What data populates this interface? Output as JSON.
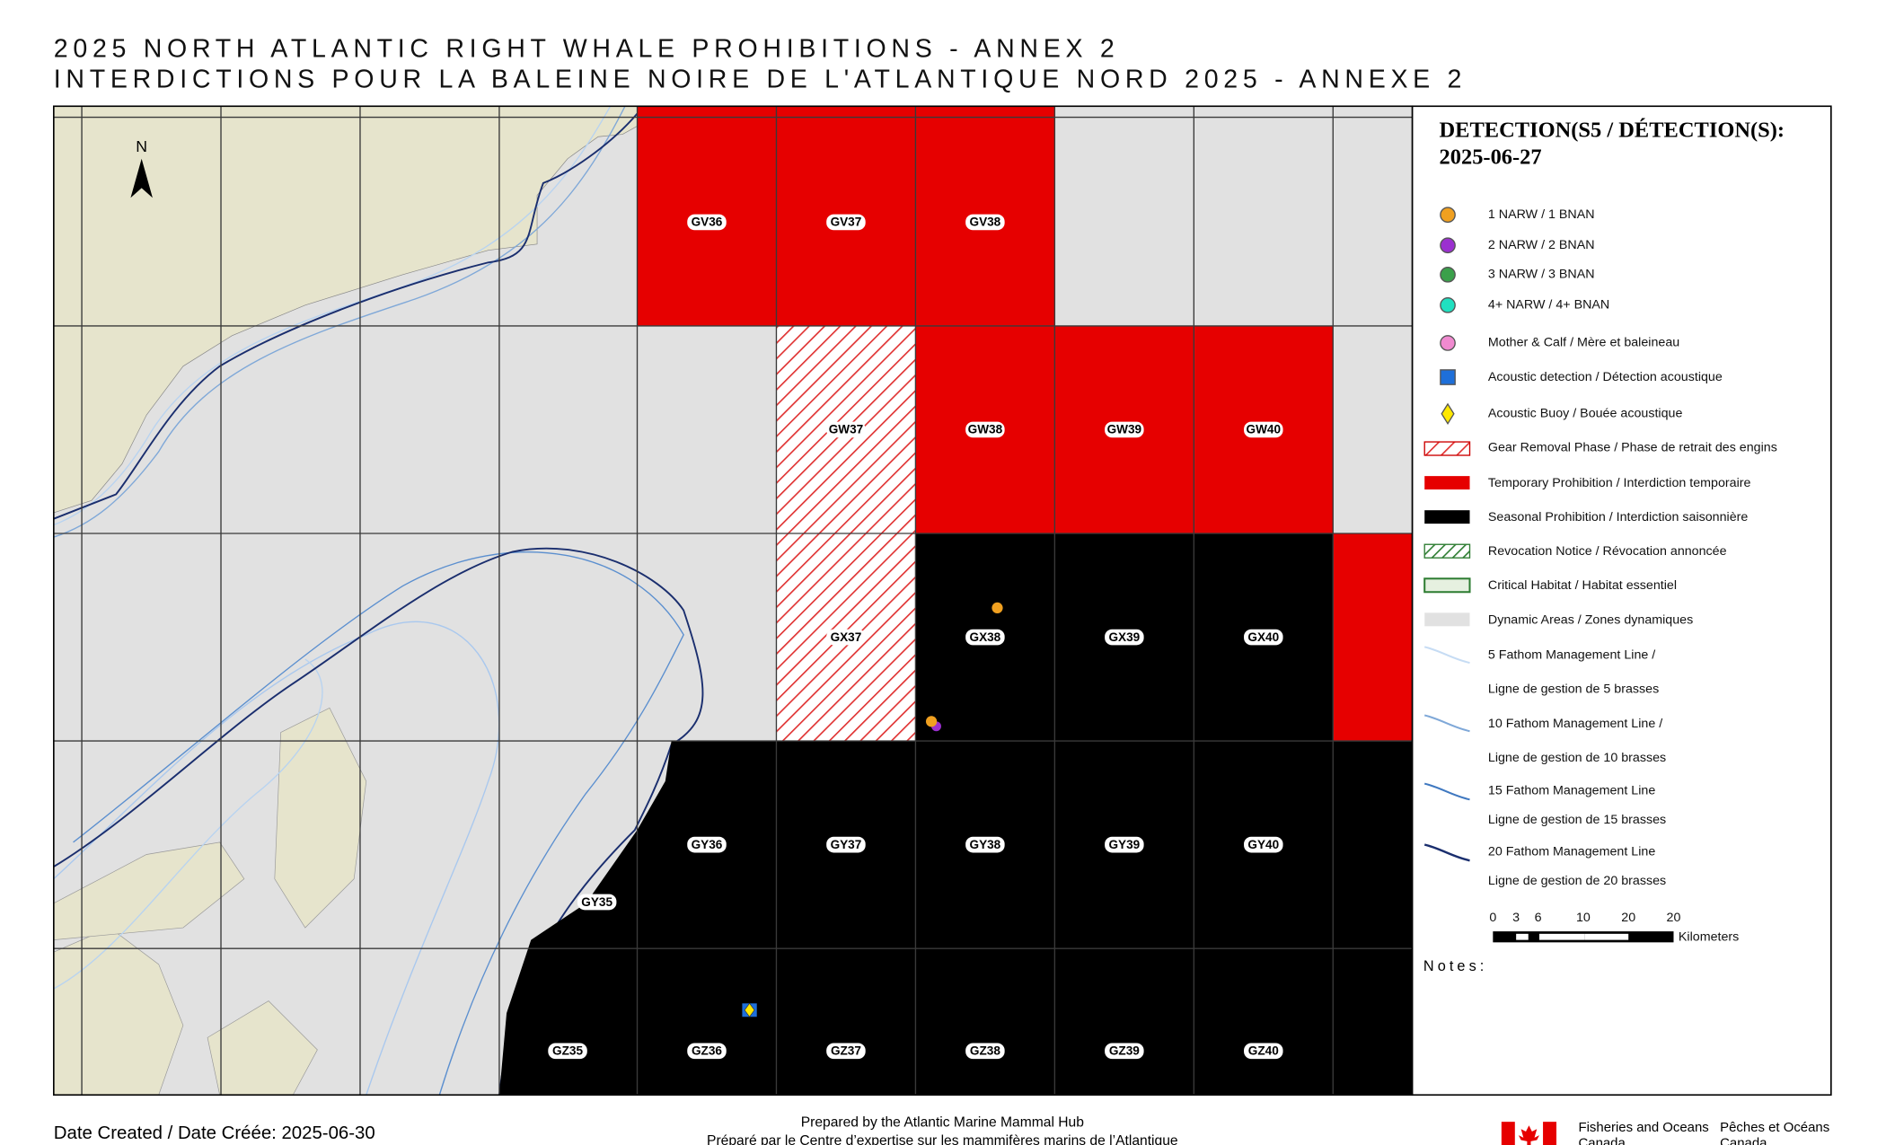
{
  "header": {
    "title": "2025 NORTH ATLANTIC RIGHT WHALE PROHIBITIONS - ANNEX 2",
    "subtitle": "INTERDICTIONS POUR LA BALEINE NOIRE DE L'ATLANTIQUE NORD 2025 - ANNEXE 2"
  },
  "map": {
    "north": "N",
    "cells": [
      "GV36",
      "GV37",
      "GV38",
      "GW37",
      "GW38",
      "GW39",
      "GW40",
      "GX37",
      "GX38",
      "GX39",
      "GX40",
      "GY35",
      "GY36",
      "GY37",
      "GY38",
      "GY39",
      "GY40",
      "GZ35",
      "GZ36",
      "GZ37",
      "GZ38",
      "GZ39",
      "GZ40"
    ]
  },
  "legend": {
    "title_line1": "DETECTION(S5 / DÉTECTION(S):",
    "title_line2": "2025-06-27",
    "items": [
      "1 NARW / 1 BNAN",
      "2 NARW / 2 BNAN",
      "3 NARW / 3 BNAN",
      "4+ NARW / 4+ BNAN",
      "Mother & Calf / Mère et baleineau",
      "Acoustic detection / Détection acoustique",
      "Acoustic Buoy / Bouée acoustique",
      "Gear Removal Phase / Phase de retrait des engins",
      "Temporary Prohibition / Interdiction temporaire",
      "Seasonal Prohibition / Interdiction saisonnière",
      "Revocation Notice / Révocation annoncée",
      "Critical Habitat / Habitat essentiel",
      "Dynamic Areas / Zones dynamiques",
      "5 Fathom Management Line /",
      "Ligne de gestion de 5 brasses",
      "10 Fathom Management Line /",
      "Ligne de gestion de 10 brasses",
      "15 Fathom Management Line",
      "Ligne de gestion de 15 brasses",
      "20 Fathom Management Line",
      "Ligne de gestion de 20 brasses"
    ],
    "scale": [
      "0",
      "3",
      "6",
      "10",
      "20",
      "20"
    ],
    "scale_unit": "Kilometers",
    "notes": "Notes:"
  },
  "footer": {
    "date": "Date Created / Date Créée: 2025-06-30",
    "prepared_en": "Prepared by the Atlantic Marine Mammal Hub",
    "prepared_fr": "Préparé par le Centre d’expertise sur les mammifères marins de l’Atlantique",
    "dfo_en_1": "Fisheries and Oceans",
    "dfo_en_2": "Canada",
    "dfo_fr_1": "Pêches et Océans",
    "dfo_fr_2": "Canada"
  }
}
